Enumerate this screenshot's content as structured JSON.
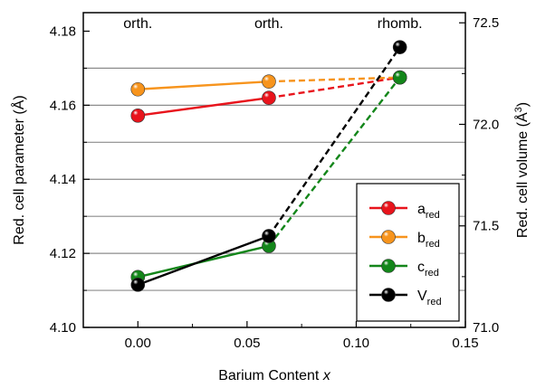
{
  "chart_data": {
    "type": "line",
    "xlabel": "Barium Content",
    "xlabel_italic": "x",
    "ylabel": "Red. cell parameter (Å)",
    "ylabel_right_prefix": "Red. cell volume (Å",
    "ylabel_right_sup": "3",
    "ylabel_right_suffix": ")",
    "xlim": [
      -0.025,
      0.15
    ],
    "ylim": [
      4.1,
      4.185
    ],
    "ylim_right": [
      71.0,
      72.55
    ],
    "x_ticks": [
      0.0,
      0.05,
      0.1,
      0.15
    ],
    "x_tick_labels": [
      "0.00",
      "0.05",
      "0.10",
      "0.15"
    ],
    "y_ticks": [
      4.1,
      4.12,
      4.14,
      4.16,
      4.18
    ],
    "y_tick_labels": [
      "4.10",
      "4.12",
      "4.14",
      "4.16",
      "4.18"
    ],
    "y_right_ticks": [
      71.0,
      71.5,
      72.0,
      72.5
    ],
    "y_right_tick_labels": [
      "71.0",
      "71.5",
      "72.0",
      "72.5"
    ],
    "grid_y": [
      4.11,
      4.12,
      4.13,
      4.14,
      4.15,
      4.16,
      4.17
    ],
    "annotations": [
      {
        "x": 0.0,
        "text": "orth."
      },
      {
        "x": 0.06,
        "text": "orth."
      },
      {
        "x": 0.12,
        "text": "rhomb."
      }
    ],
    "legend_position": "bottom-right",
    "series": [
      {
        "name": "a",
        "sub": "red",
        "color": "#e8141c",
        "axis": "left",
        "x": [
          0.0,
          0.06,
          0.12
        ],
        "values": [
          4.1572,
          4.162,
          4.1675
        ],
        "dashed_from": 1
      },
      {
        "name": "b",
        "sub": "red",
        "color": "#f7941d",
        "axis": "left",
        "x": [
          0.0,
          0.06,
          0.12
        ],
        "values": [
          4.1643,
          4.1664,
          4.1675
        ],
        "dashed_from": 1
      },
      {
        "name": "c",
        "sub": "red",
        "color": "#13861a",
        "axis": "left",
        "x": [
          0.0,
          0.06,
          0.12
        ],
        "values": [
          4.1136,
          4.122,
          4.1675
        ],
        "dashed_from": 1
      },
      {
        "name": "V",
        "sub": "red",
        "color": "#000000",
        "axis": "right",
        "x": [
          0.0,
          0.06,
          0.12
        ],
        "values": [
          71.21,
          71.45,
          72.38
        ],
        "dashed_from": 1
      }
    ]
  }
}
